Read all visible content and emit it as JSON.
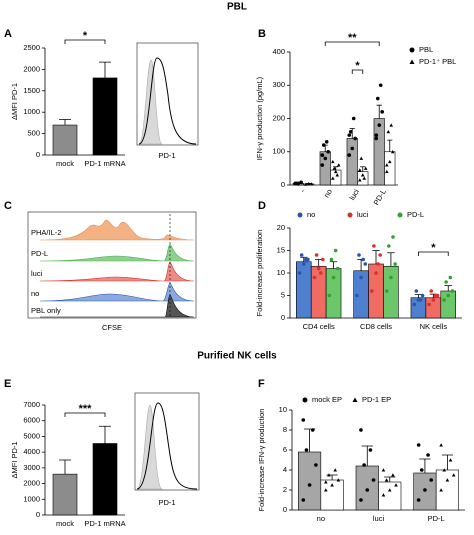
{
  "headings": [
    "PBL",
    "Purified NK cells"
  ],
  "panel_letters": [
    "A",
    "B",
    "C",
    "D",
    "E",
    "F"
  ],
  "flow": {
    "labels": [
      "PHA/IL-2",
      "PD-L",
      "luci",
      "no",
      "PBL only"
    ],
    "xlabel": "CFSE"
  },
  "insets": [
    {
      "xlabel": "PD-1"
    },
    {
      "xlabel": "PD-1"
    }
  ],
  "chart_data": [
    {
      "type": "bar",
      "ylabel": "ΔMFI PD-1",
      "categories": [
        "mock",
        "PD-1 mRNA"
      ],
      "series": [
        {
          "colors": [
            "#8c8c8c",
            "#000000"
          ],
          "values": [
            700,
            1800
          ],
          "errors": [
            130,
            370
          ]
        }
      ],
      "ylim": [
        0,
        2500
      ],
      "yticks": [
        0,
        500,
        1000,
        1500,
        2000,
        2500
      ],
      "annotations": [
        "*"
      ]
    },
    {
      "type": "bar",
      "ylabel": "IFN-γ production (pg/mL)",
      "categories": [
        "-",
        "no",
        "luci",
        "PD-L"
      ],
      "series": [
        {
          "name": "PBL",
          "color": "#a6a6a6",
          "point_color": "#000000",
          "marker": "circle",
          "values": [
            5,
            100,
            140,
            200
          ],
          "errors": [
            4,
            20,
            30,
            40
          ],
          "points": [
            [
              5,
              3,
              8
            ],
            [
              60,
              80,
              100,
              120,
              130,
              90
            ],
            [
              90,
              110,
              140,
              160,
              200,
              150
            ],
            [
              140,
              180,
              220,
              260,
              300,
              150
            ]
          ]
        },
        {
          "name": "PD-1⁺ PBL",
          "color": "#ffffff",
          "point_color": "#000000",
          "marker": "triangle",
          "values": [
            3,
            45,
            40,
            100
          ],
          "errors": [
            2,
            10,
            15,
            35
          ],
          "points": [
            [
              2,
              4,
              3
            ],
            [
              20,
              40,
              60,
              50,
              30,
              70
            ],
            [
              15,
              30,
              50,
              80,
              20,
              45
            ],
            [
              40,
              70,
              100,
              160,
              180,
              60
            ]
          ]
        }
      ],
      "ylim": [
        0,
        400
      ],
      "yticks": [
        0,
        100,
        200,
        300,
        400
      ],
      "annotations": [
        "**",
        "*"
      ]
    },
    {
      "type": "bar",
      "ylabel": "Fold-increase proliferation",
      "categories": [
        "CD4 cells",
        "CD8 cells",
        "NK cells"
      ],
      "series": [
        {
          "name": "no",
          "color": "#4f7fcf",
          "point_color": "#2a55a8",
          "marker": "circle",
          "values": [
            12.5,
            10.5,
            4.5
          ],
          "errors": [
            1,
            2.5,
            0.7
          ],
          "points": [
            [
              10,
              12,
              13,
              14,
              13
            ],
            [
              5,
              9,
              12,
              14,
              13
            ],
            [
              3,
              4,
              5,
              6,
              4
            ]
          ]
        },
        {
          "name": "luci",
          "color": "#ef6b63",
          "point_color": "#d7322a",
          "marker": "circle",
          "values": [
            11.5,
            12,
            4.5
          ],
          "errors": [
            1.5,
            3,
            0.8
          ],
          "points": [
            [
              9,
              11,
              13,
              14,
              10
            ],
            [
              6,
              10,
              14,
              16,
              12
            ],
            [
              3,
              4,
              5,
              6,
              5
            ]
          ]
        },
        {
          "name": "PD-L",
          "color": "#6cc66a",
          "point_color": "#34a030",
          "marker": "circle",
          "values": [
            11,
            11.5,
            6
          ],
          "errors": [
            1.5,
            3,
            1.2
          ],
          "points": [
            [
              5,
              9,
              11,
              13,
              15
            ],
            [
              6,
              9,
              12,
              16,
              18
            ],
            [
              4,
              5,
              6,
              8,
              9
            ]
          ]
        }
      ],
      "ylim": [
        0,
        20
      ],
      "yticks": [
        0,
        5,
        10,
        15,
        20
      ],
      "annotations": [
        "*"
      ]
    },
    {
      "type": "bar",
      "ylabel": "ΔMFI PD-1",
      "categories": [
        "mock",
        "PD-1 mRNA"
      ],
      "series": [
        {
          "colors": [
            "#8c8c8c",
            "#000000"
          ],
          "values": [
            2600,
            4550
          ],
          "errors": [
            900,
            1100
          ]
        }
      ],
      "ylim": [
        0,
        7000
      ],
      "yticks": [
        0,
        1000,
        2000,
        3000,
        4000,
        5000,
        6000,
        7000
      ],
      "annotations": [
        "***"
      ]
    },
    {
      "type": "bar",
      "ylabel": "Fold-increase IFN-γ production",
      "categories": [
        "no",
        "luci",
        "PD-L"
      ],
      "series": [
        {
          "name": "mock EP",
          "color": "#a6a6a6",
          "point_color": "#000000",
          "marker": "circle",
          "values": [
            5.8,
            4.4,
            3.7
          ],
          "errors": [
            2.3,
            2,
            1.4
          ],
          "points": [
            [
              1,
              2.5,
              4.5,
              6,
              8,
              9
            ],
            [
              1,
              2,
              3,
              4.5,
              6,
              8
            ],
            [
              1,
              2,
              3,
              4,
              5.5,
              6.5
            ]
          ]
        },
        {
          "name": "PD-1 EP",
          "color": "#ffffff",
          "point_color": "#000000",
          "marker": "triangle",
          "values": [
            3,
            2.8,
            4
          ],
          "errors": [
            0.5,
            0.5,
            1.5
          ],
          "points": [
            [
              2,
              2.5,
              3,
              3.5,
              4,
              2.8
            ],
            [
              1.5,
              2,
              2.5,
              3,
              3.5,
              4
            ],
            [
              2,
              3,
              3.5,
              4,
              5,
              6.5
            ]
          ]
        }
      ],
      "ylim": [
        0,
        10
      ],
      "yticks": [
        0,
        2,
        4,
        6,
        8,
        10
      ],
      "annotations": []
    }
  ]
}
